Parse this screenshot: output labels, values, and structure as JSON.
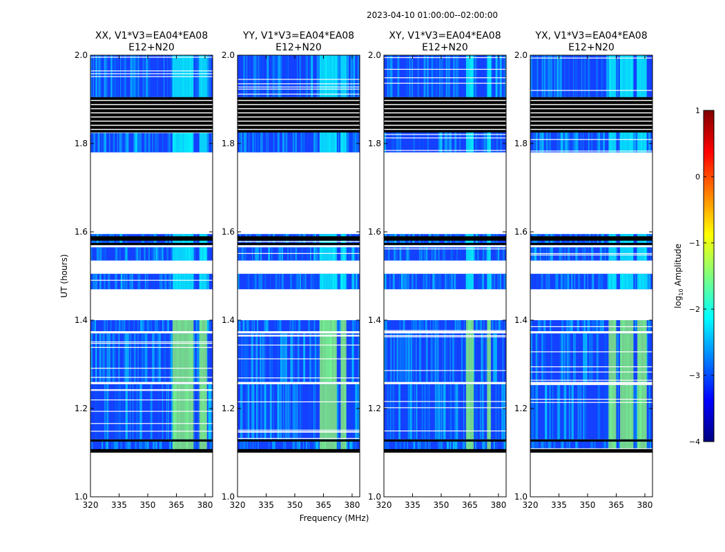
{
  "suptitle": "2023-04-10  01:00:00--02:00:00",
  "chart_data": {
    "type": "heatmap",
    "xlabel": "Frequency (MHz)",
    "ylabel": "UT (hours)",
    "xlim": [
      320,
      384
    ],
    "ylim": [
      1.0,
      2.0
    ],
    "x_ticks": [
      320,
      335,
      350,
      365,
      380
    ],
    "y_ticks": [
      1.0,
      1.2,
      1.4,
      1.6,
      1.8,
      2.0
    ],
    "y_tick_labels": [
      "1.0",
      "1.2",
      "1.4",
      "1.6",
      "1.8",
      "2.0"
    ],
    "panels": [
      {
        "title_line1": "XX, V1*V3=EA04*EA08",
        "title_line2": "E12+N20",
        "rfi_x": [
          [
            363,
            374
          ],
          [
            377,
            381
          ]
        ]
      },
      {
        "title_line1": "YY, V1*V3=EA04*EA08",
        "title_line2": "E12+N20",
        "rfi_x": [
          [
            363,
            372
          ],
          [
            374,
            377
          ]
        ]
      },
      {
        "title_line1": "XY, V1*V3=EA04*EA08",
        "title_line2": "E12+N20",
        "rfi_x": [
          [
            363,
            367
          ],
          [
            374,
            376
          ]
        ]
      },
      {
        "title_line1": "YX, V1*V3=EA04*EA08",
        "title_line2": "E12+N20",
        "rfi_x": [
          [
            361,
            365
          ],
          [
            367,
            374
          ],
          [
            376,
            381
          ]
        ]
      }
    ],
    "data_segments_ut": [
      [
        1.1,
        1.125
      ],
      [
        1.13,
        1.255
      ],
      [
        1.26,
        1.37
      ],
      [
        1.375,
        1.4
      ],
      [
        1.47,
        1.505
      ],
      [
        1.535,
        1.565
      ],
      [
        1.57,
        1.595
      ],
      [
        1.78,
        1.9
      ],
      [
        1.905,
        2.0
      ]
    ],
    "flagged_black_bands_ut": [
      [
        1.1,
        1.108
      ],
      [
        1.125,
        1.13
      ],
      [
        1.57,
        1.575
      ],
      [
        1.58,
        1.59
      ],
      [
        1.825,
        1.905
      ]
    ],
    "colorbar": {
      "label": "log10 Amplitude",
      "label_prefix": "log",
      "label_subscript": "10",
      "label_suffix": " Amplitude",
      "range": [
        -4,
        1
      ],
      "ticks": [
        -4,
        -3,
        -2,
        -1,
        0,
        1
      ],
      "tick_labels": [
        "−4",
        "−3",
        "−2",
        "−1",
        "0",
        "1"
      ],
      "colormap": "jet",
      "stops": [
        "#00007f",
        "#0000ff",
        "#007fff",
        "#00ffff",
        "#7fff7f",
        "#ffff00",
        "#ff7f00",
        "#ff0000",
        "#7f0000"
      ]
    }
  }
}
